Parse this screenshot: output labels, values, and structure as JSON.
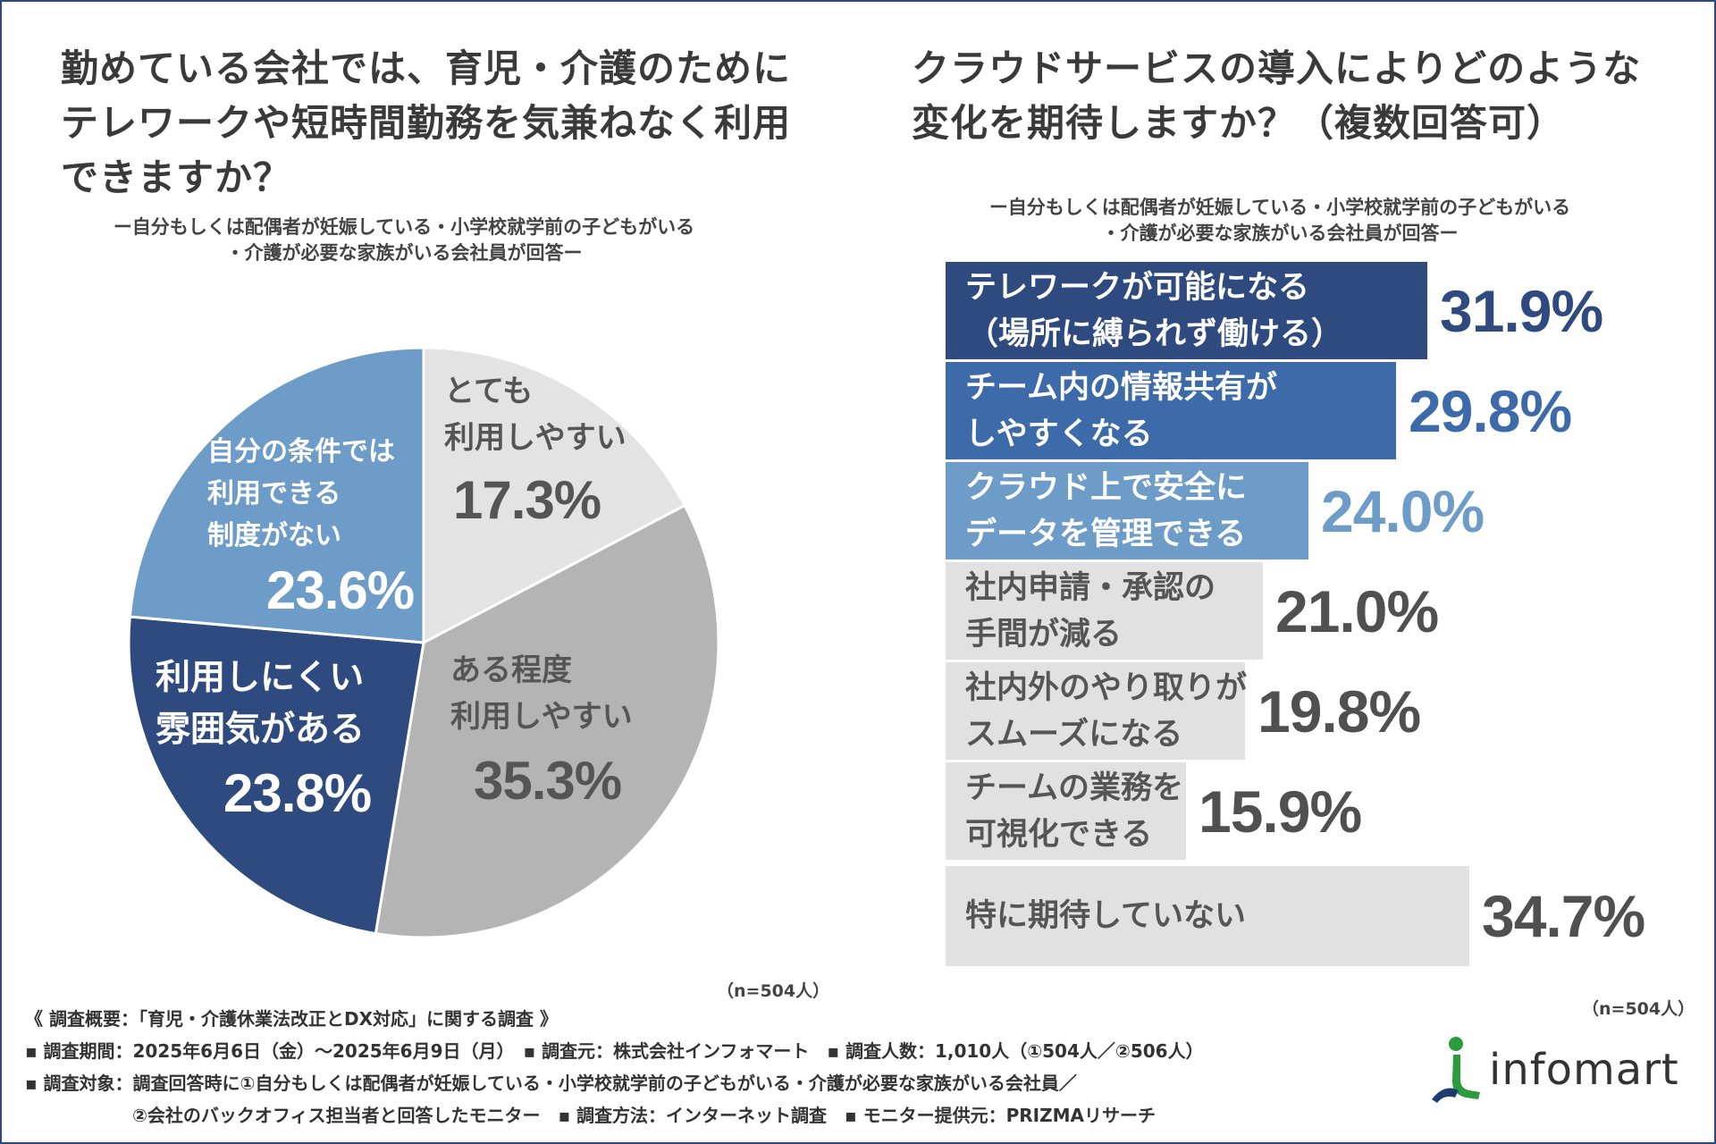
{
  "left": {
    "title_lines": [
      "勤めている会社では、育児・介護のために",
      "テレワークや短時間勤務を気兼ねなく利用",
      "できますか？"
    ],
    "subtitle_lines": [
      "ー自分もしくは配偶者が妊娠している・小学校就学前の子どもがいる",
      "・介護が必要な家族がいる会社員が回答ー"
    ],
    "n_label": "（n=504人）"
  },
  "right": {
    "title_lines": [
      "クラウドサービスの導入によりどのような",
      "変化を期待しますか？（複数回答可）"
    ],
    "subtitle_lines": [
      "ー自分もしくは配偶者が妊娠している・小学校就学前の子どもがいる",
      "・介護が必要な家族がいる会社員が回答ー"
    ],
    "n_label": "（n=504人）"
  },
  "chart_data": [
    {
      "type": "pie",
      "title": "勤めている会社では、育児・介護のためにテレワークや短時間勤務を気兼ねなく利用できますか？",
      "start_angle_deg": 0,
      "direction": "clockwise",
      "slices": [
        {
          "label_lines": [
            "とても",
            "利用しやすい"
          ],
          "value": 17.3,
          "value_label": "17.3%",
          "color": "#e3e3e3",
          "text_color": "#555555"
        },
        {
          "label_lines": [
            "ある程度",
            "利用しやすい"
          ],
          "value": 35.3,
          "value_label": "35.3%",
          "color": "#b4b4b4",
          "text_color": "#555555"
        },
        {
          "label_lines": [
            "利用しにくい",
            "雰囲気がある"
          ],
          "value": 23.8,
          "value_label": "23.8%",
          "color": "#2e4a7f",
          "text_color": "#ffffff"
        },
        {
          "label_lines": [
            "自分の条件では",
            "利用できる",
            "制度がない"
          ],
          "value": 23.6,
          "value_label": "23.6%",
          "color": "#6d9cc8",
          "text_color": "#ffffff"
        }
      ]
    },
    {
      "type": "bar",
      "orientation": "horizontal",
      "title": "クラウドサービスの導入によりどのような変化を期待しますか？（複数回答可）",
      "xlim": [
        0,
        40
      ],
      "bars": [
        {
          "label_lines": [
            "テレワークが可能になる",
            "（場所に縛られず働ける）"
          ],
          "value": 31.9,
          "value_label": "31.9%",
          "color": "#2e4a7f",
          "text_color": "#ffffff",
          "value_color": "#2e4a7f"
        },
        {
          "label_lines": [
            "チーム内の情報共有が",
            "しやすくなる"
          ],
          "value": 29.8,
          "value_label": "29.8%",
          "color": "#3d6aa8",
          "text_color": "#ffffff",
          "value_color": "#3d6aa8"
        },
        {
          "label_lines": [
            "クラウド上で安全に",
            "データを管理できる"
          ],
          "value": 24.0,
          "value_label": "24.0%",
          "color": "#6d9cc8",
          "text_color": "#ffffff",
          "value_color": "#6d9cc8"
        },
        {
          "label_lines": [
            "社内申請・承認の",
            "手間が減る"
          ],
          "value": 21.0,
          "value_label": "21.0%",
          "color": "#e1e1e1",
          "text_color": "#555555",
          "value_color": "#505050"
        },
        {
          "label_lines": [
            "社内外のやり取りが",
            "スムーズになる"
          ],
          "value": 19.8,
          "value_label": "19.8%",
          "color": "#e1e1e1",
          "text_color": "#555555",
          "value_color": "#505050"
        },
        {
          "label_lines": [
            "チームの業務を",
            "可視化できる"
          ],
          "value": 15.9,
          "value_label": "15.9%",
          "color": "#e1e1e1",
          "text_color": "#555555",
          "value_color": "#505050"
        },
        {
          "label_lines": [
            "特に期待していない"
          ],
          "value": 34.7,
          "value_label": "34.7%",
          "color": "#e1e1e1",
          "text_color": "#555555",
          "value_color": "#505050"
        }
      ]
    }
  ],
  "footer": {
    "lines": [
      "《 調査概要：「育児・介護休業法改正とDX対応」に関する調査 》",
      "▪ 調査期間：2025年6月6日（金）～2025年6月9日（月）　▪ 調査元：株式会社インフォマート　▪ 調査人数：1,010人（①504人／②506人）",
      "▪ 調査対象：調査回答時に①自分もしくは配偶者が妊娠している・小学校就学前の子どもがいる・介護が必要な家族がいる会社員／",
      "　　　　　　②会社のバックオフィス担当者と回答したモニター　▪ 調査方法：インターネット調査　▪ モニター提供元：PRIZMAリサーチ"
    ]
  },
  "logo": {
    "text": "infomart",
    "colors": {
      "green": "#2e9a3e",
      "navy": "#1d3d72"
    }
  }
}
